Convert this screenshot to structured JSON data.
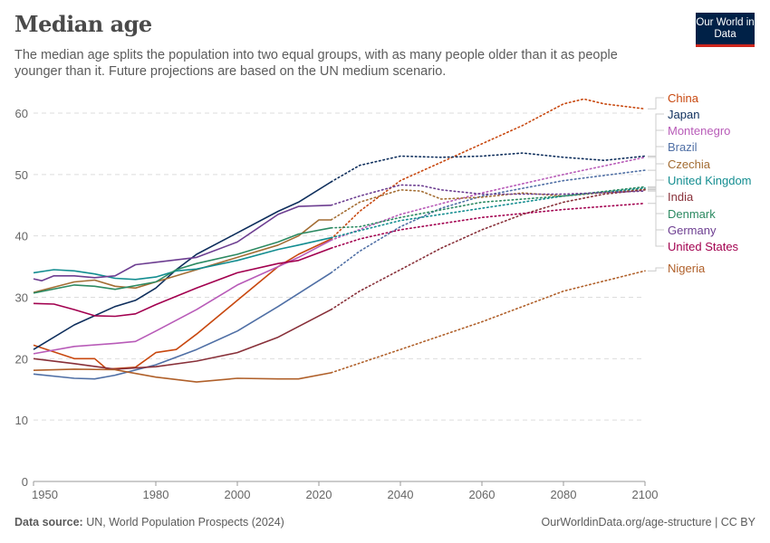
{
  "header": {
    "title": "Median age",
    "subtitle": "The median age splits the population into two equal groups, with as many people older than it as people younger than it. Future projections are based on the UN medium scenario.",
    "logo": "Our World in Data"
  },
  "footer": {
    "source_label": "Data source:",
    "source": "UN, World Population Prospects (2024)",
    "url": "OurWorldinData.org/age-structure | CC BY"
  },
  "chart_data": {
    "type": "line",
    "title": "Median age",
    "xlabel": "",
    "ylabel": "",
    "xlim": [
      1950,
      2100
    ],
    "ylim": [
      0,
      60
    ],
    "x_ticks": [
      1950,
      1980,
      2000,
      2020,
      2040,
      2060,
      2080,
      2100
    ],
    "y_ticks": [
      0,
      10,
      20,
      30,
      40,
      50,
      60
    ],
    "grid": "horizontal dashed",
    "legend": "right (line-end labels)",
    "projection_start": 2023,
    "projection_style": "dotted",
    "series": [
      {
        "name": "China",
        "color": "#c8480f",
        "x": [
          1950,
          1960,
          1965,
          1968,
          1975,
          1980,
          1985,
          1990,
          2000,
          2010,
          2015,
          2023,
          2030,
          2040,
          2050,
          2060,
          2070,
          2080,
          2085,
          2090,
          2100
        ],
        "y": [
          22.2,
          20,
          20,
          18.3,
          18.6,
          21,
          21.5,
          24,
          29.5,
          35,
          37,
          39.5,
          44,
          49,
          52,
          55,
          58,
          61.5,
          62.3,
          61.5,
          60.7
        ]
      },
      {
        "name": "Japan",
        "color": "#0e2e5c",
        "x": [
          1950,
          1960,
          1970,
          1975,
          1980,
          1985,
          1990,
          2000,
          2010,
          2015,
          2023,
          2030,
          2040,
          2050,
          2060,
          2070,
          2080,
          2090,
          2100
        ],
        "y": [
          21.5,
          25.5,
          28.5,
          29.5,
          31.5,
          34.5,
          37,
          40.5,
          44,
          45.5,
          48.8,
          51.5,
          53,
          52.8,
          53,
          53.5,
          52.8,
          52.3,
          53
        ]
      },
      {
        "name": "Montenegro",
        "color": "#b85bb8",
        "x": [
          1950,
          1960,
          1970,
          1975,
          1980,
          1990,
          2000,
          2010,
          2015,
          2023,
          2040,
          2060,
          2080,
          2100
        ],
        "y": [
          20.8,
          22,
          22.5,
          22.8,
          24.5,
          28,
          32,
          35,
          36.5,
          39.3,
          43.5,
          47,
          50,
          52.8
        ]
      },
      {
        "name": "Brazil",
        "color": "#4f6fa5",
        "x": [
          1950,
          1960,
          1965,
          1970,
          1980,
          1990,
          2000,
          2010,
          2023,
          2030,
          2040,
          2050,
          2060,
          2080,
          2100
        ],
        "y": [
          17.5,
          16.8,
          16.7,
          17.3,
          19,
          21.5,
          24.5,
          28.5,
          34,
          37.5,
          41.5,
          44.5,
          46.5,
          49,
          50.7
        ]
      },
      {
        "name": "Czechia",
        "color": "#a36d33",
        "x": [
          1950,
          1960,
          1965,
          1970,
          1975,
          1980,
          1990,
          2000,
          2010,
          2015,
          2020,
          2023,
          2030,
          2040,
          2045,
          2050,
          2060,
          2070,
          2080,
          2100
        ],
        "y": [
          30.8,
          32.5,
          32.8,
          31.8,
          31.5,
          32.5,
          34.5,
          36.5,
          38.5,
          40,
          42.6,
          42.6,
          45.5,
          47.5,
          47.3,
          46,
          46.3,
          47,
          46.5,
          47.6
        ]
      },
      {
        "name": "United Kingdom",
        "color": "#138d90",
        "x": [
          1950,
          1955,
          1960,
          1965,
          1970,
          1975,
          1980,
          1985,
          1990,
          2000,
          2010,
          2015,
          2023,
          2040,
          2060,
          2080,
          2100
        ],
        "y": [
          34,
          34.5,
          34.3,
          33.8,
          33.1,
          32.9,
          33.3,
          34.3,
          34.6,
          36,
          37.8,
          38.5,
          39.7,
          42.5,
          44.5,
          46.5,
          47.8
        ]
      },
      {
        "name": "India",
        "color": "#883039",
        "x": [
          1950,
          1960,
          1970,
          1980,
          1990,
          2000,
          2010,
          2023,
          2030,
          2040,
          2050,
          2060,
          2070,
          2080,
          2090,
          2100
        ],
        "y": [
          20,
          19.2,
          18.3,
          18.7,
          19.6,
          21,
          23.5,
          28,
          31,
          34.5,
          38,
          41,
          43.5,
          45.5,
          46.8,
          47.5
        ]
      },
      {
        "name": "Denmark",
        "color": "#2c8a62",
        "x": [
          1950,
          1960,
          1965,
          1970,
          1980,
          1985,
          1990,
          2000,
          2010,
          2015,
          2023,
          2030,
          2040,
          2060,
          2080,
          2100
        ],
        "y": [
          30.7,
          32,
          31.8,
          31.3,
          32.5,
          34.5,
          35.5,
          37,
          39,
          40.3,
          41.3,
          41.5,
          43,
          45.5,
          46.5,
          48
        ]
      },
      {
        "name": "Germany",
        "color": "#6d3e91",
        "x": [
          1950,
          1952,
          1955,
          1960,
          1965,
          1970,
          1975,
          1980,
          1990,
          2000,
          2010,
          2015,
          2023,
          2030,
          2040,
          2045,
          2050,
          2060,
          2080,
          2100
        ],
        "y": [
          33,
          32.7,
          33.5,
          33.5,
          33.2,
          33.5,
          35.3,
          35.7,
          36.5,
          39,
          43.5,
          44.8,
          45,
          46.5,
          48.3,
          48.2,
          47.5,
          46.8,
          46.8,
          47.3
        ]
      },
      {
        "name": "United States",
        "color": "#a2004f",
        "x": [
          1950,
          1955,
          1960,
          1965,
          1970,
          1975,
          1980,
          1990,
          2000,
          2010,
          2015,
          2023,
          2030,
          2040,
          2060,
          2080,
          2100
        ],
        "y": [
          29,
          28.9,
          28,
          27,
          26.9,
          27.3,
          28.8,
          31.5,
          34,
          35.5,
          36,
          38,
          39.5,
          41,
          43,
          44.3,
          45.3
        ]
      },
      {
        "name": "Nigeria",
        "color": "#b0602a",
        "x": [
          1950,
          1960,
          1970,
          1980,
          1990,
          2000,
          2010,
          2015,
          2023,
          2040,
          2060,
          2080,
          2100
        ],
        "y": [
          18.1,
          18.3,
          18.2,
          17,
          16.2,
          16.8,
          16.7,
          16.7,
          17.7,
          21.5,
          26,
          31,
          34.3
        ]
      }
    ]
  }
}
